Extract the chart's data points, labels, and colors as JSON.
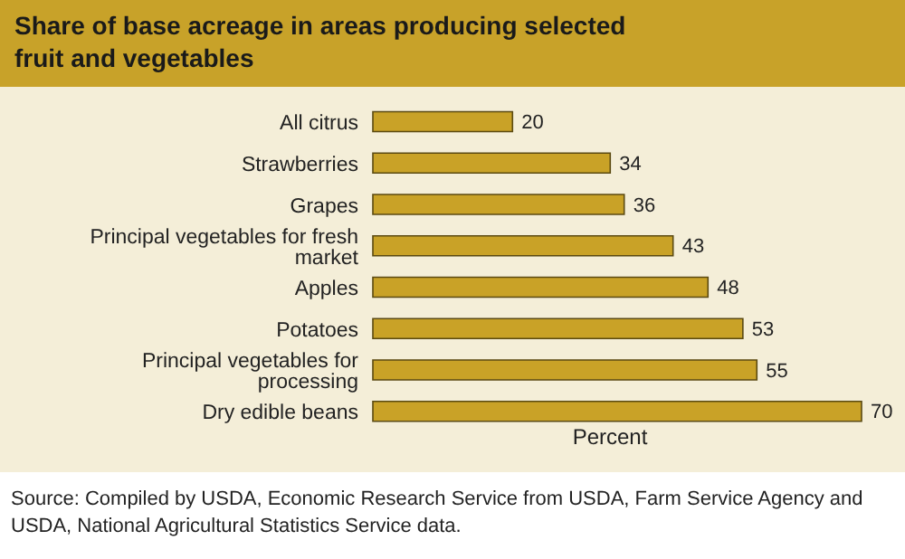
{
  "chart_data": {
    "type": "bar",
    "orientation": "horizontal",
    "title": "Share of base acreage in areas producing selected fruit and vegetables",
    "xlabel": "Percent",
    "categories": [
      "All citrus",
      "Strawberries",
      "Grapes",
      "Principal vegetables for fresh market",
      "Apples",
      "Potatoes",
      "Principal vegetables for processing",
      "Dry edible beans"
    ],
    "values": [
      20,
      34,
      36,
      43,
      48,
      53,
      55,
      70
    ],
    "color": "#c9a227",
    "data_labels": true,
    "annotations": [
      "Source: Compiled by USDA, Economic Research Service from USDA, Farm Service Agency and USDA, National Agricultural Statistics Service data."
    ]
  }
}
